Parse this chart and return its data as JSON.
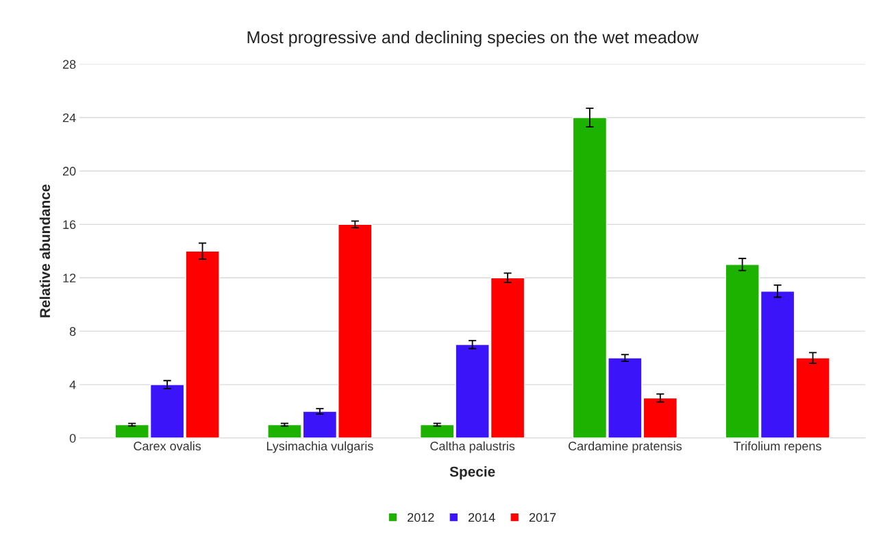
{
  "chart_data": {
    "type": "bar",
    "title": "Most progressive and declining species on the wet meadow",
    "xlabel": "Specie",
    "ylabel": "Relative abundance",
    "categories": [
      "Carex ovalis",
      "Lysimachia vulgaris",
      "Caltha palustris",
      "Cardamine pratensis",
      "Trifolium repens"
    ],
    "series": [
      {
        "name": "2012",
        "color": "#1db100",
        "values": [
          1,
          1,
          1,
          24,
          13
        ],
        "errors": [
          0.1,
          0.1,
          0.1,
          0.7,
          0.45
        ]
      },
      {
        "name": "2014",
        "color": "#3c14fa",
        "values": [
          4,
          2,
          7,
          6,
          11
        ],
        "errors": [
          0.3,
          0.2,
          0.3,
          0.25,
          0.45
        ]
      },
      {
        "name": "2017",
        "color": "#fe0000",
        "values": [
          14,
          16,
          12,
          3,
          6
        ],
        "errors": [
          0.6,
          0.25,
          0.35,
          0.3,
          0.4
        ]
      }
    ],
    "ylim": [
      0,
      28
    ],
    "yticks": [
      0,
      4,
      8,
      12,
      16,
      20,
      24,
      28
    ],
    "grid": "y",
    "legend": "bottom"
  }
}
